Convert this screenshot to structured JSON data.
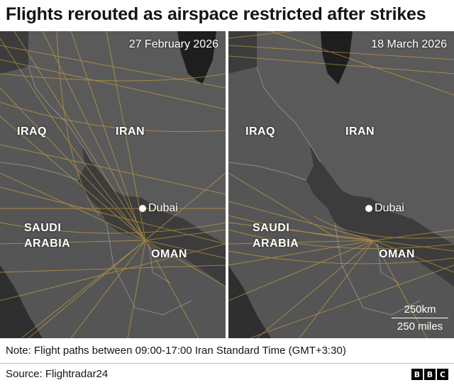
{
  "title": "Flights rerouted as airspace restricted after strikes",
  "colors": {
    "sea": "#3c3c3c",
    "land": "#5a5a5a",
    "border": "#8a8a8a",
    "water_body": "#1e1e1e",
    "flight": "#e3b23c"
  },
  "panels": [
    {
      "date": "27 February 2026",
      "labels": {
        "iraq": "IRAQ",
        "iran": "IRAN",
        "saudi_line1": "SAUDI",
        "saudi_line2": "ARABIA",
        "oman": "OMAN"
      },
      "city": "Dubai"
    },
    {
      "date": "18 March 2026",
      "labels": {
        "iraq": "IRAQ",
        "iran": "IRAN",
        "saudi_line1": "SAUDI",
        "saudi_line2": "ARABIA",
        "oman": "OMAN"
      },
      "city": "Dubai"
    }
  ],
  "scale": {
    "km": "250km",
    "miles": "250 miles"
  },
  "note": "Note: Flight paths between 09:00-17:00 Iran Standard Time (GMT+3:30)",
  "source": "Source: Flightradar24",
  "logo": [
    "B",
    "B",
    "C"
  ]
}
